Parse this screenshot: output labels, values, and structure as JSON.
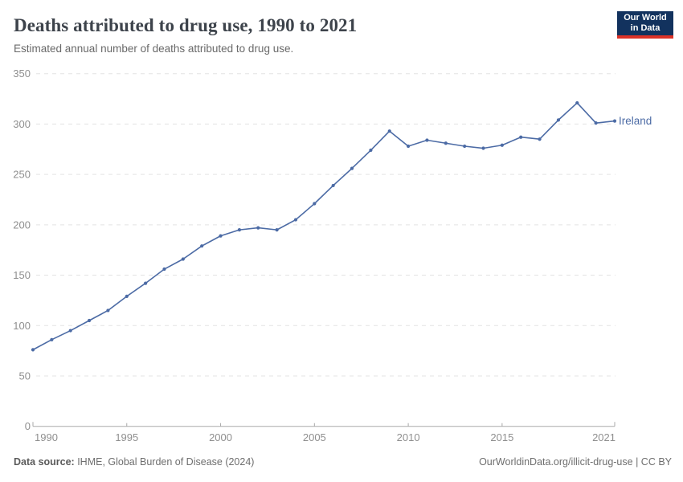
{
  "logo": {
    "line1": "Our World",
    "line2": "in Data",
    "bg_color": "#12325E",
    "accent_color": "#DC3227"
  },
  "chart_data": {
    "type": "line",
    "title": "Deaths attributed to drug use, 1990 to 2021",
    "subtitle": "Estimated annual number of deaths attributed to drug use.",
    "xlabel": "",
    "ylabel": "",
    "ylim": [
      0,
      350
    ],
    "yticks": [
      0,
      50,
      100,
      150,
      200,
      250,
      300,
      350
    ],
    "xticks": [
      1990,
      1995,
      2000,
      2005,
      2010,
      2015,
      2021
    ],
    "grid": "horizontal-dashed",
    "legend_position": "end-of-line",
    "axis_color": "#a9a9a9",
    "grid_color": "#e3e3e3",
    "tick_label_color": "#8f8f8f",
    "series": [
      {
        "name": "Ireland",
        "color": "#4C6BA5",
        "x": [
          1990,
          1991,
          1992,
          1993,
          1994,
          1995,
          1996,
          1997,
          1998,
          1999,
          2000,
          2001,
          2002,
          2003,
          2004,
          2005,
          2006,
          2007,
          2008,
          2009,
          2010,
          2011,
          2012,
          2013,
          2014,
          2015,
          2016,
          2017,
          2018,
          2019,
          2020,
          2021
        ],
        "values": [
          76,
          86,
          95,
          105,
          115,
          129,
          142,
          156,
          166,
          179,
          189,
          195,
          197,
          195,
          205,
          221,
          239,
          256,
          274,
          293,
          278,
          284,
          281,
          278,
          276,
          279,
          287,
          285,
          304,
          321,
          301,
          303
        ]
      }
    ]
  },
  "footer": {
    "datasource_label": "Data source:",
    "datasource_value": " IHME, Global Burden of Disease (2024)",
    "link": "OurWorldinData.org/illicit-drug-use",
    "separator": " | ",
    "license": "CC BY"
  }
}
